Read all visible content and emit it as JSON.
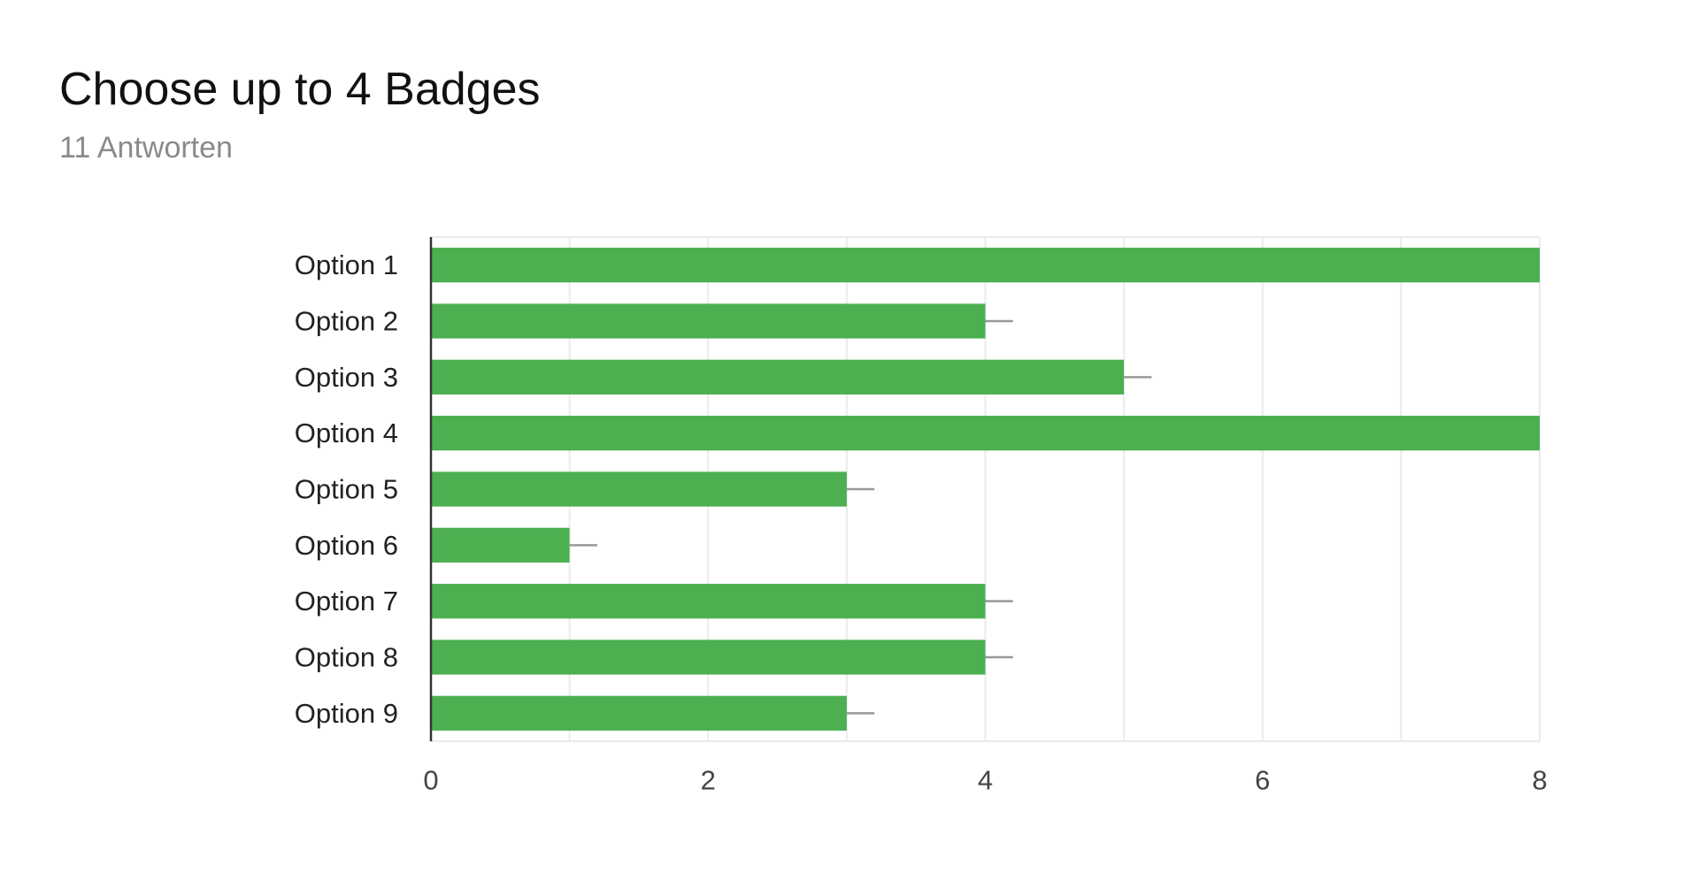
{
  "header": {
    "title": "Choose up to 4 Badges",
    "subtitle": "11 Antworten"
  },
  "colors": {
    "bar": "#4caf50",
    "grid": "#ebebeb",
    "axis": "#333333",
    "error_bar": "#999999"
  },
  "chart_data": {
    "type": "bar",
    "orientation": "horizontal",
    "categories": [
      "Option 1",
      "Option 2",
      "Option 3",
      "Option 4",
      "Option 5",
      "Option 6",
      "Option 7",
      "Option 8",
      "Option 9"
    ],
    "values": [
      8,
      4,
      5,
      8,
      3,
      1,
      4,
      4,
      3
    ],
    "error_bar_upper": [
      0,
      0.2,
      0.2,
      0,
      0.2,
      0.2,
      0.2,
      0.2,
      0.2
    ],
    "xlim": [
      0,
      8
    ],
    "xticks": [
      0,
      2,
      4,
      6,
      8
    ],
    "xtick_labels": [
      "0",
      "2",
      "4",
      "6",
      "8"
    ],
    "grid": true,
    "legend": "none"
  }
}
